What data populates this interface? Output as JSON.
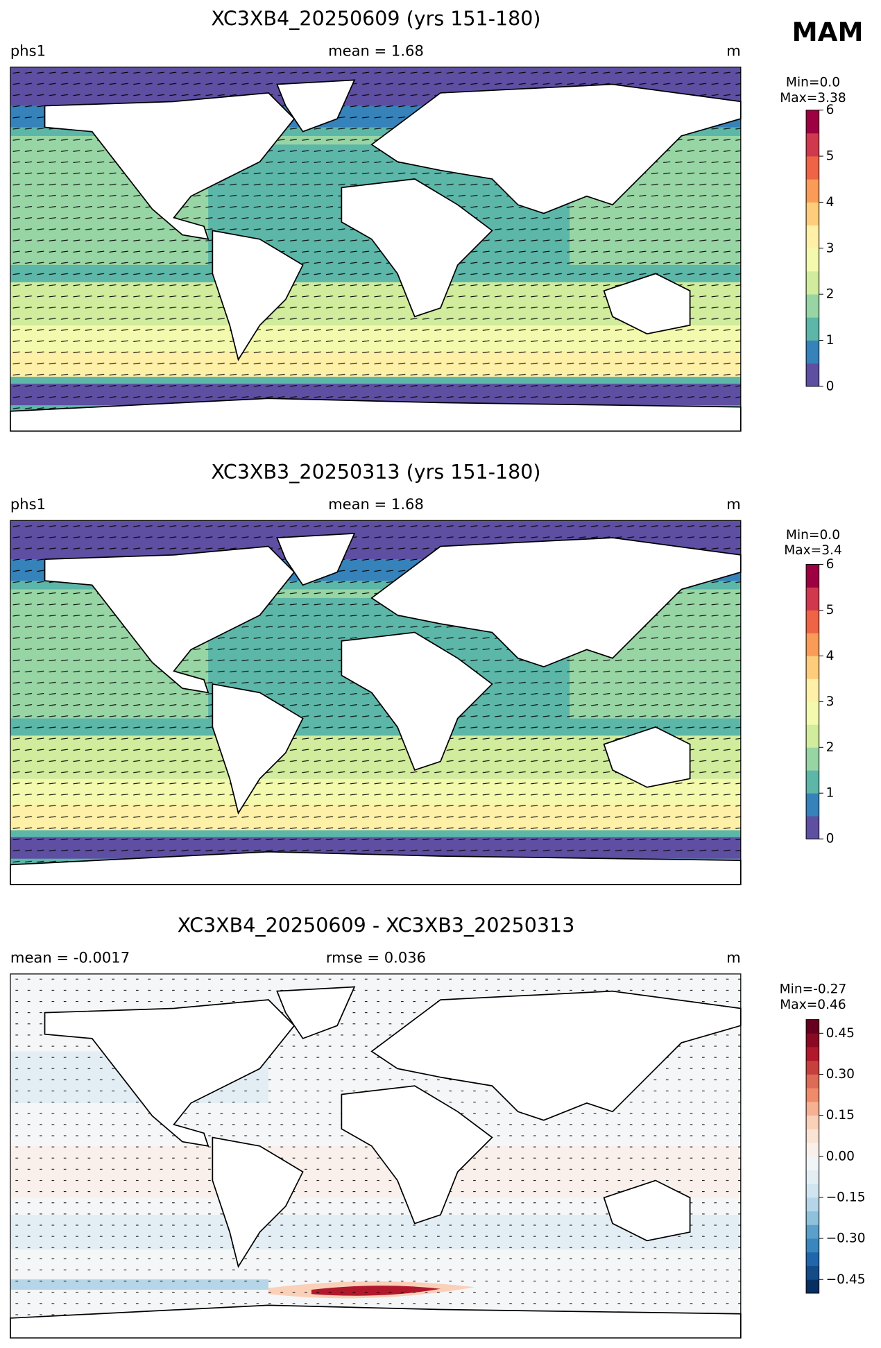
{
  "season": "MAM",
  "chart_data": [
    {
      "type": "contour-map",
      "title": "XC3XB4_20250609 (yrs 151-180)",
      "left_label": "phs1",
      "center_label": "mean = 1.68",
      "right_label": "m",
      "colorbar": {
        "min_label": "Min=0.0",
        "max_label": "Max=3.38",
        "clim": [
          0,
          6
        ],
        "ticks": [
          0,
          1,
          2,
          3,
          4,
          5,
          6
        ],
        "colors": [
          "#5e4fa2",
          "#3682ba",
          "#5cb7a9",
          "#98d5a4",
          "#d0ec9c",
          "#f3faad",
          "#fef0a7",
          "#fdcd7b",
          "#fa9c58",
          "#ee6445",
          "#d0384e",
          "#9e0142"
        ]
      }
    },
    {
      "type": "contour-map",
      "title": "XC3XB3_20250313 (yrs 151-180)",
      "left_label": "phs1",
      "center_label": "mean = 1.68",
      "right_label": "m",
      "colorbar": {
        "min_label": "Min=0.0",
        "max_label": "Max=3.4",
        "clim": [
          0,
          6
        ],
        "ticks": [
          0,
          1,
          2,
          3,
          4,
          5,
          6
        ],
        "colors": [
          "#5e4fa2",
          "#3682ba",
          "#5cb7a9",
          "#98d5a4",
          "#d0ec9c",
          "#f3faad",
          "#fef0a7",
          "#fdcd7b",
          "#fa9c58",
          "#ee6445",
          "#d0384e",
          "#9e0142"
        ]
      }
    },
    {
      "type": "contour-map",
      "title": "XC3XB4_20250609 - XC3XB3_20250313",
      "left_label": "mean = -0.0017",
      "center_label": "rmse = 0.036",
      "right_label": "m",
      "colorbar": {
        "min_label": "Min=-0.27",
        "max_label": "Max=0.46",
        "clim": [
          -0.5,
          0.5
        ],
        "ticks": [
          {
            "value": -0.45,
            "label": "−0.45"
          },
          {
            "value": -0.3,
            "label": "−0.30"
          },
          {
            "value": -0.15,
            "label": "−0.15"
          },
          {
            "value": 0,
            "label": "0.00"
          },
          {
            "value": 0.15,
            "label": "0.15"
          },
          {
            "value": 0.3,
            "label": "0.30"
          },
          {
            "value": 0.45,
            "label": "0.45"
          }
        ],
        "colors": [
          "#053061",
          "#134c87",
          "#2166ac",
          "#3a87bd",
          "#5aa0ca",
          "#8ec1dc",
          "#b5d6e8",
          "#d1e5f0",
          "#e3eef4",
          "#f2f5f7",
          "#f9f0eb",
          "#fbe3d4",
          "#fbd0b9",
          "#f6b092",
          "#ef8a6a",
          "#dc6c57",
          "#c6413e",
          "#b2182b",
          "#8b0a23",
          "#67001f"
        ]
      }
    }
  ]
}
